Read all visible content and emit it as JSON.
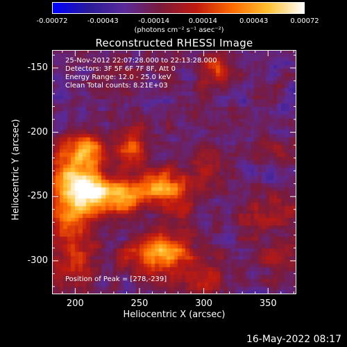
{
  "colorbar": {
    "ticks": [
      "-0.00072",
      "-0.00043",
      "-0.00014",
      "0.00014",
      "0.00043",
      "0.00072"
    ],
    "tick_values": [
      -0.00072,
      -0.00043,
      -0.00014,
      0.00014,
      0.00043,
      0.00072
    ],
    "min": -0.00072,
    "max": 0.00072,
    "units": "(photons cm⁻² s⁻¹ asec⁻²)",
    "colors": [
      "#0000ff",
      "#2a1a9a",
      "#5a2a9a",
      "#7a1a3a",
      "#c01a10",
      "#ff6a00",
      "#ffc030",
      "#ffffff"
    ]
  },
  "info": {
    "line1": "25-Nov-2012 22:07:28.000 to 22:13:28.000",
    "line2": "Detectors: 3F 5F 6F 7F 8F, Att 0",
    "line3": "Energy Range: 12.0 - 25.0 keV",
    "line4": "Clean     Total counts: 8.21E+03"
  },
  "peak": "Position of Peak = [278,-239]",
  "footer_date": "16-May-2022 08:17",
  "chart_data": {
    "type": "heatmap",
    "title": "Reconstructed RHESSI Image",
    "xlabel": "Heliocentric X (arcsec)",
    "ylabel": "Heliocentric Y (arcsec)",
    "xlim": [
      182,
      372
    ],
    "ylim": [
      -326,
      -136
    ],
    "xticks": [
      200,
      250,
      300,
      350
    ],
    "yticks": [
      -150,
      -200,
      -250,
      -300
    ],
    "xtick_labels": [
      "200",
      "250",
      "300",
      "350"
    ],
    "ytick_labels": [
      "-150",
      "-200",
      "-250",
      "-300"
    ],
    "peak_position": [
      278,
      -239
    ],
    "peak_value": 0.00072,
    "blobs": [
      {
        "x": 200,
        "y": -235,
        "sx": 14,
        "sy": 16,
        "v": 0.00065
      },
      {
        "x": 215,
        "y": -248,
        "sx": 14,
        "sy": 10,
        "v": 0.00058
      },
      {
        "x": 240,
        "y": -250,
        "sx": 12,
        "sy": 9,
        "v": 0.00055
      },
      {
        "x": 268,
        "y": -242,
        "sx": 12,
        "sy": 8,
        "v": 0.0007
      },
      {
        "x": 244,
        "y": -212,
        "sx": 9,
        "sy": 11,
        "v": 0.0005
      },
      {
        "x": 210,
        "y": -212,
        "sx": 10,
        "sy": 10,
        "v": 0.00042
      },
      {
        "x": 196,
        "y": -270,
        "sx": 14,
        "sy": 14,
        "v": 0.00048
      },
      {
        "x": 200,
        "y": -305,
        "sx": 12,
        "sy": 12,
        "v": 0.00035
      },
      {
        "x": 268,
        "y": -300,
        "sx": 22,
        "sy": 12,
        "v": 0.0004
      },
      {
        "x": 268,
        "y": -290,
        "sx": 14,
        "sy": 8,
        "v": 0.00036
      },
      {
        "x": 302,
        "y": -318,
        "sx": 12,
        "sy": 8,
        "v": 0.0003
      },
      {
        "x": 310,
        "y": -152,
        "sx": 8,
        "sy": 12,
        "v": 0.00036
      },
      {
        "x": 282,
        "y": -260,
        "sx": 8,
        "sy": 8,
        "v": 0.0003
      },
      {
        "x": 300,
        "y": -230,
        "sx": 10,
        "sy": 16,
        "v": 0.00022
      },
      {
        "x": 336,
        "y": -272,
        "sx": 8,
        "sy": 8,
        "v": 0.0002
      },
      {
        "x": 355,
        "y": -262,
        "sx": 12,
        "sy": 10,
        "v": 0.00028
      },
      {
        "x": 358,
        "y": -296,
        "sx": 10,
        "sy": 8,
        "v": 0.00024
      },
      {
        "x": 356,
        "y": -218,
        "sx": 10,
        "sy": 8,
        "v": 0.00018
      },
      {
        "x": 225,
        "y": -165,
        "sx": 8,
        "sy": 8,
        "v": 0.00015
      },
      {
        "x": 262,
        "y": -150,
        "sx": 10,
        "sy": 6,
        "v": 0.00014
      }
    ],
    "grid": false
  }
}
